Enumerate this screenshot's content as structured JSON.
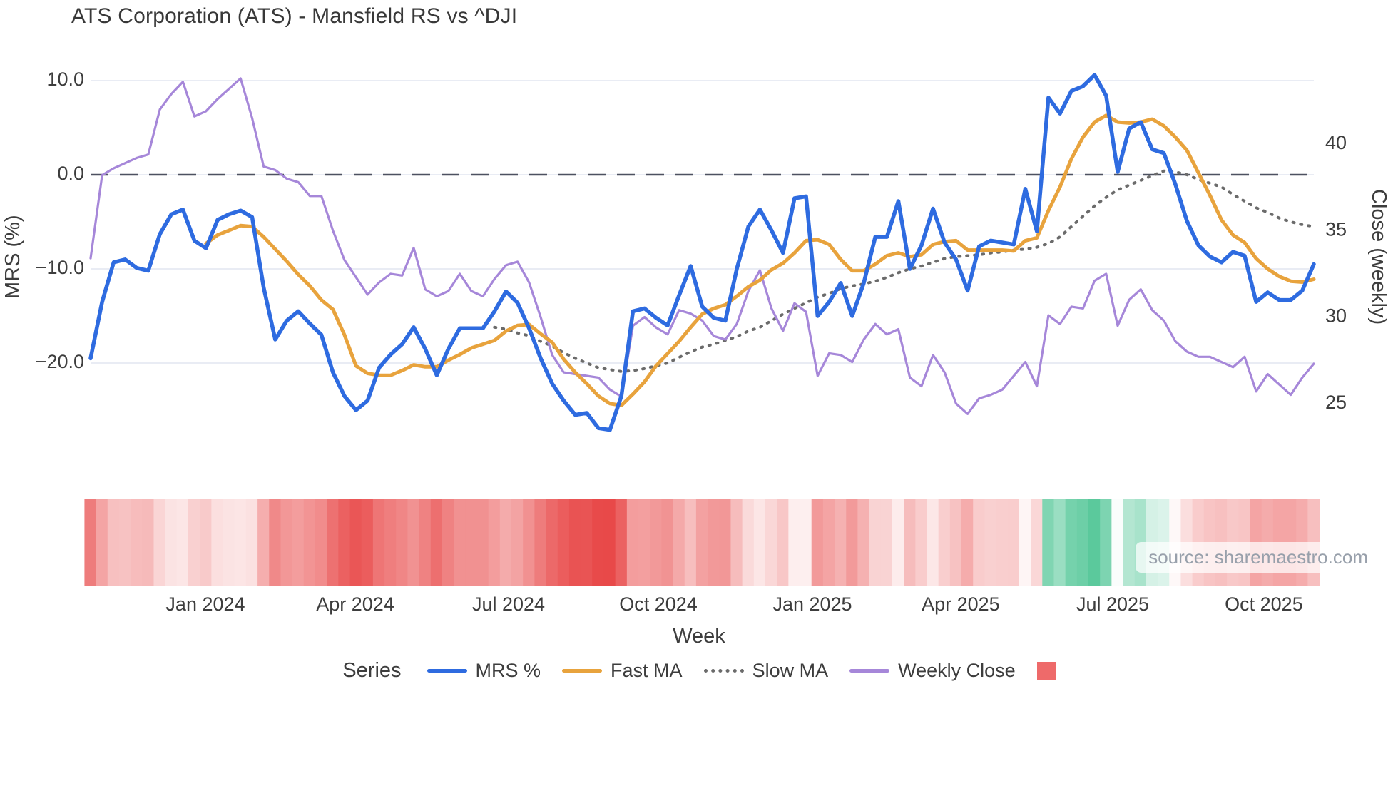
{
  "title": "ATS Corporation (ATS) - Mansfield RS vs ^DJI",
  "watermark": "source: sharemaestro.com",
  "axes": {
    "x": {
      "label": "Week",
      "ticks": [
        {
          "label": "Jan 2024",
          "week": 9.95
        },
        {
          "label": "Apr 2024",
          "week": 22.93
        },
        {
          "label": "Jul 2024",
          "week": 36.22
        },
        {
          "label": "Oct 2024",
          "week": 49.2
        },
        {
          "label": "Jan 2025",
          "week": 62.55
        },
        {
          "label": "Apr 2025",
          "week": 75.4
        },
        {
          "label": "Jul 2025",
          "week": 88.57
        },
        {
          "label": "Oct 2025",
          "week": 101.67
        }
      ]
    },
    "y_left": {
      "label": "MRS (%)",
      "ticks": [
        {
          "label": "10.0",
          "value": 10
        },
        {
          "label": "0.0",
          "value": 0
        },
        {
          "label": "−10.0",
          "value": -10
        },
        {
          "label": "−20.0",
          "value": -20
        }
      ]
    },
    "y_right": {
      "label": "Close (weekly)",
      "ticks": [
        {
          "label": "40",
          "value": 40
        },
        {
          "label": "35",
          "value": 35
        },
        {
          "label": "30",
          "value": 30
        },
        {
          "label": "25",
          "value": 25
        }
      ]
    }
  },
  "legend": {
    "title": "Series",
    "items": [
      {
        "label": "MRS %",
        "color": "#2e6be0",
        "style": "solid"
      },
      {
        "label": "Fast MA",
        "color": "#e8a33d",
        "style": "solid"
      },
      {
        "label": "Slow MA",
        "color": "#6b6b6b",
        "style": "dotted"
      },
      {
        "label": "Weekly Close",
        "color": "#a687d9",
        "style": "solid"
      },
      {
        "label": "",
        "color": "#ee6a6a",
        "style": "square"
      }
    ]
  },
  "colors": {
    "grid": "#e9ecf4",
    "zero_line": "#4d5160",
    "tick_text": "#3d3d3d",
    "heat_negative": "#e84949",
    "heat_positive": "#45c28f"
  },
  "chart_data": {
    "type": "line",
    "title": "ATS Corporation (ATS) - Mansfield RS vs ^DJI",
    "xlabel": "Week",
    "ylabel_left": "MRS (%)",
    "ylabel_right": "Close (weekly)",
    "x_unit": "weekly index, ~Oct 2023 through Nov 2025",
    "n_weeks": 107,
    "ylim_left": [
      -31,
      12.5
    ],
    "grid": true,
    "legend_position": "bottom",
    "reference_line_left": 0,
    "series": [
      {
        "name": "MRS %",
        "axis": "left",
        "color": "#2e6be0",
        "width": 5.5,
        "dash": null,
        "values": [
          -19.5,
          -13.5,
          -9.3,
          -9.0,
          -9.9,
          -10.2,
          -6.3,
          -4.2,
          -3.7,
          -7.0,
          -7.8,
          -4.8,
          -4.2,
          -3.8,
          -4.5,
          -12.0,
          -17.5,
          -15.5,
          -14.5,
          -15.8,
          -17.0,
          -21.0,
          -23.5,
          -25.0,
          -24.0,
          -20.5,
          -19.1,
          -18.0,
          -16.2,
          -18.5,
          -21.3,
          -18.5,
          -16.3,
          -16.3,
          -16.3,
          -14.5,
          -12.4,
          -13.6,
          -16.3,
          -19.5,
          -22.2,
          -24.0,
          -25.5,
          -25.3,
          -26.9,
          -27.1,
          -23.5,
          -14.5,
          -14.2,
          -15.2,
          -16.0,
          -12.8,
          -9.7,
          -14.0,
          -15.2,
          -15.5,
          -10.0,
          -5.5,
          -3.7,
          -5.9,
          -8.3,
          -2.5,
          -2.3,
          -15.0,
          -13.5,
          -11.5,
          -15.0,
          -11.5,
          -6.6,
          -6.6,
          -2.8,
          -10.0,
          -7.5,
          -3.6,
          -7.2,
          -9.0,
          -12.3,
          -7.6,
          -7.0,
          -7.2,
          -7.4,
          -1.5,
          -6.0,
          8.2,
          6.5,
          8.9,
          9.4,
          10.6,
          8.4,
          0.3,
          4.9,
          5.6,
          2.7,
          2.3,
          -1.0,
          -4.9,
          -7.5,
          -8.7,
          -9.3,
          -8.2,
          -8.6,
          -13.5,
          -12.5,
          -13.3,
          -13.3,
          -12.3,
          -9.5
        ]
      },
      {
        "name": "Fast MA",
        "axis": "left",
        "color": "#e8a33d",
        "width": 5,
        "dash": null,
        "values": [
          null,
          null,
          null,
          null,
          null,
          null,
          null,
          null,
          null,
          null,
          -7.3,
          -6.4,
          -5.9,
          -5.4,
          -5.5,
          -6.6,
          -7.9,
          -9.2,
          -10.6,
          -11.8,
          -13.3,
          -14.3,
          -17.0,
          -20.3,
          -21.1,
          -21.3,
          -21.3,
          -20.8,
          -20.2,
          -20.4,
          -20.4,
          -19.7,
          -19.1,
          -18.4,
          -18.0,
          -17.6,
          -16.6,
          -16.0,
          -15.9,
          -16.9,
          -17.8,
          -19.6,
          -21.0,
          -22.2,
          -23.5,
          -24.3,
          -24.5,
          -23.3,
          -22.0,
          -20.3,
          -19.0,
          -17.7,
          -16.2,
          -14.8,
          -14.2,
          -13.8,
          -12.9,
          -11.9,
          -11.2,
          -10.1,
          -9.4,
          -8.3,
          -7.0,
          -6.9,
          -7.4,
          -9.0,
          -10.2,
          -10.2,
          -9.5,
          -8.6,
          -8.3,
          -8.7,
          -8.5,
          -7.4,
          -7.1,
          -7.0,
          -8.0,
          -8.0,
          -8.0,
          -8.0,
          -8.1,
          -7.0,
          -6.7,
          -3.8,
          -1.3,
          1.7,
          4.0,
          5.6,
          6.3,
          5.6,
          5.5,
          5.6,
          5.9,
          5.2,
          4.0,
          2.6,
          0.2,
          -2.2,
          -4.8,
          -6.4,
          -7.2,
          -8.9,
          -10.0,
          -10.8,
          -11.3,
          -11.4,
          -11.1
        ]
      },
      {
        "name": "Slow MA",
        "axis": "left",
        "color": "#6b6b6b",
        "width": 4,
        "dash": "2 9",
        "values": [
          null,
          null,
          null,
          null,
          null,
          null,
          null,
          null,
          null,
          null,
          null,
          null,
          null,
          null,
          null,
          null,
          null,
          null,
          null,
          null,
          null,
          null,
          null,
          null,
          null,
          null,
          null,
          null,
          null,
          null,
          null,
          null,
          null,
          null,
          null,
          -16.2,
          -16.4,
          -16.8,
          -17.1,
          -17.7,
          -18.2,
          -18.9,
          -19.5,
          -20.0,
          -20.5,
          -20.7,
          -20.9,
          -20.8,
          -20.6,
          -20.3,
          -20.0,
          -19.4,
          -18.8,
          -18.3,
          -18.0,
          -17.6,
          -17.2,
          -16.6,
          -16.2,
          -15.5,
          -14.8,
          -14.2,
          -13.6,
          -13.0,
          -12.6,
          -12.1,
          -11.8,
          -11.6,
          -11.3,
          -10.9,
          -10.4,
          -10.0,
          -9.7,
          -9.3,
          -8.9,
          -8.7,
          -8.6,
          -8.5,
          -8.3,
          -8.2,
          -8.0,
          -7.9,
          -7.7,
          -7.3,
          -6.6,
          -5.5,
          -4.4,
          -3.3,
          -2.4,
          -1.6,
          -1.1,
          -0.6,
          -0.1,
          0.4,
          0.3,
          0.0,
          -0.5,
          -0.9,
          -1.3,
          -2.1,
          -2.8,
          -3.5,
          -4.0,
          -4.6,
          -5.0,
          -5.3,
          -5.5
        ]
      },
      {
        "name": "Weekly Close",
        "axis": "right",
        "color": "#a687d9",
        "width": 3.2,
        "dash": null,
        "values": [
          33.4,
          38.2,
          38.6,
          38.9,
          39.2,
          39.4,
          42.0,
          42.9,
          43.6,
          41.6,
          41.9,
          42.6,
          43.2,
          43.8,
          41.5,
          38.7,
          38.5,
          38.0,
          37.8,
          37.0,
          37.0,
          35.0,
          33.3,
          32.3,
          31.3,
          32.0,
          32.5,
          32.4,
          34.0,
          31.6,
          31.2,
          31.5,
          32.5,
          31.5,
          31.2,
          32.2,
          33.0,
          33.2,
          32.0,
          30.0,
          27.8,
          26.8,
          26.7,
          26.6,
          26.5,
          25.8,
          25.4,
          29.5,
          30.0,
          29.4,
          29.0,
          30.4,
          30.2,
          29.8,
          28.9,
          28.7,
          29.6,
          31.5,
          32.7,
          30.5,
          29.2,
          30.8,
          30.3,
          26.6,
          27.9,
          27.8,
          27.4,
          28.7,
          29.6,
          29.0,
          29.3,
          26.5,
          26.0,
          27.8,
          26.8,
          25.0,
          24.4,
          25.3,
          25.5,
          25.8,
          26.6,
          27.4,
          26.0,
          30.1,
          29.6,
          30.6,
          30.5,
          32.1,
          32.5,
          29.5,
          31.0,
          31.6,
          30.4,
          29.8,
          28.6,
          28.0,
          27.7,
          27.7,
          27.4,
          27.1,
          27.7,
          25.7,
          26.7,
          26.1,
          25.5,
          26.5,
          27.3
        ]
      }
    ],
    "heatmap": {
      "source_series": "MRS %",
      "negative_color": "#e84949",
      "positive_color": "#45c28f",
      "negative_max_abs": 27,
      "positive_max": 12
    }
  }
}
